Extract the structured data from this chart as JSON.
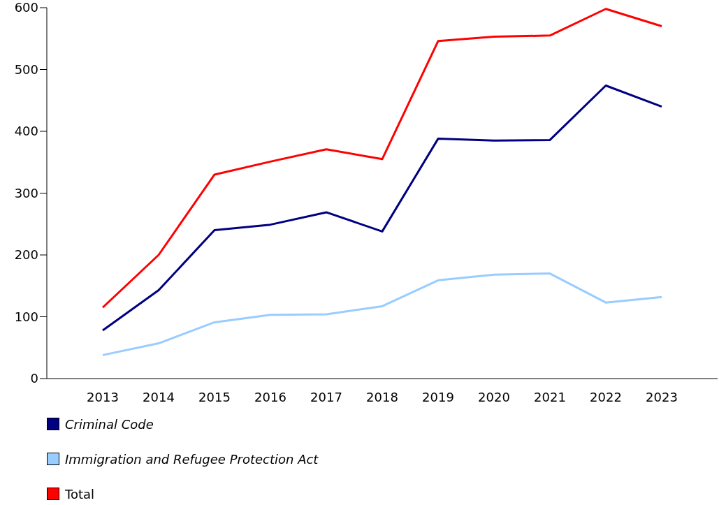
{
  "chart_data": {
    "type": "line",
    "categories": [
      "2013",
      "2014",
      "2015",
      "2016",
      "2017",
      "2018",
      "2019",
      "2020",
      "2021",
      "2022",
      "2023"
    ],
    "series": [
      {
        "name": "Criminal Code",
        "color": "#000080",
        "values": [
          78,
          143,
          240,
          249,
          269,
          238,
          388,
          385,
          386,
          474,
          440
        ]
      },
      {
        "name": "Immigration and Refugee Protection Act",
        "color": "#99ccff",
        "values": [
          38,
          57,
          91,
          103,
          104,
          117,
          159,
          168,
          170,
          123,
          132
        ]
      },
      {
        "name": "Total",
        "color": "#ff0000",
        "values": [
          115,
          200,
          330,
          351,
          371,
          355,
          546,
          553,
          555,
          598,
          570
        ]
      }
    ],
    "ylim": [
      0,
      600
    ],
    "yticks": [
      0,
      100,
      200,
      300,
      400,
      500,
      600
    ],
    "legend": "bottom",
    "marker": "none",
    "line_style": "solid"
  }
}
